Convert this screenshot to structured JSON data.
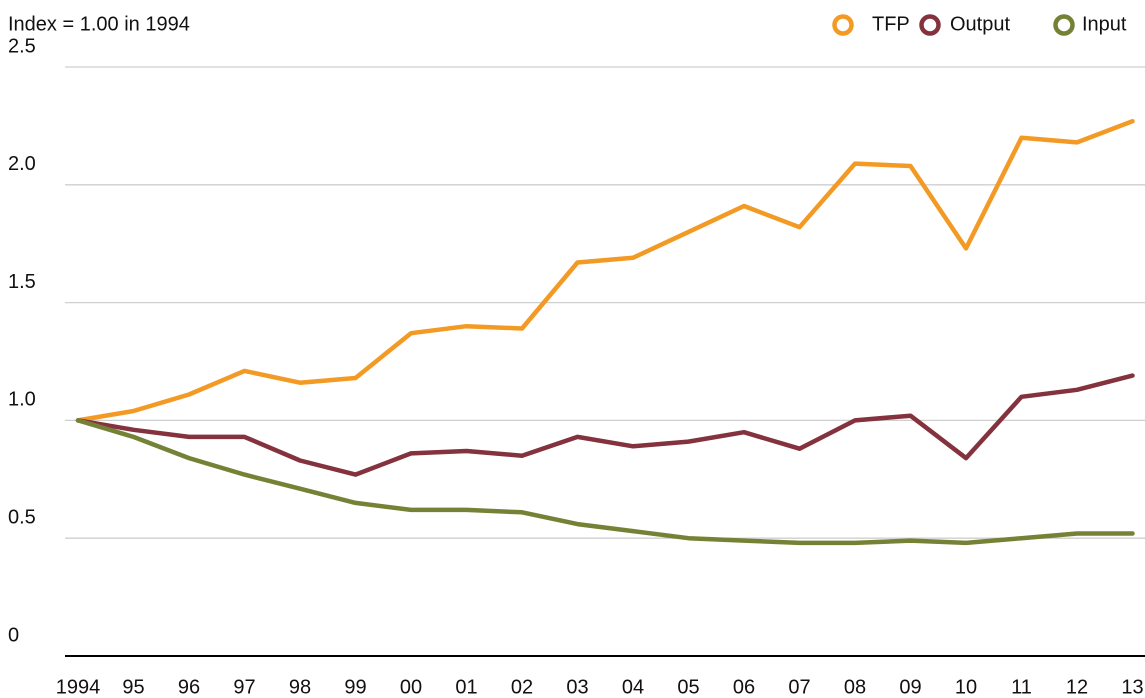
{
  "chart_data": {
    "type": "line",
    "y_label": "Index = 1.00 in 1994",
    "categories": [
      "1994",
      "95",
      "96",
      "97",
      "98",
      "99",
      "00",
      "01",
      "02",
      "03",
      "04",
      "05",
      "06",
      "07",
      "08",
      "09",
      "10",
      "11",
      "12",
      "13"
    ],
    "series": [
      {
        "name": "TFP",
        "color": "#f39a25",
        "values": [
          1.0,
          1.04,
          1.11,
          1.21,
          1.16,
          1.18,
          1.37,
          1.4,
          1.39,
          1.67,
          1.69,
          1.8,
          1.91,
          1.82,
          2.09,
          2.08,
          1.73,
          2.2,
          2.18,
          2.27
        ]
      },
      {
        "name": "Output",
        "color": "#84323d",
        "values": [
          1.0,
          0.96,
          0.93,
          0.93,
          0.83,
          0.77,
          0.86,
          0.87,
          0.85,
          0.93,
          0.89,
          0.91,
          0.95,
          0.88,
          1.0,
          1.02,
          0.84,
          1.1,
          1.13,
          1.19
        ]
      },
      {
        "name": "Input",
        "color": "#758236",
        "values": [
          1.0,
          0.93,
          0.84,
          0.77,
          0.71,
          0.65,
          0.62,
          0.62,
          0.61,
          0.56,
          0.53,
          0.5,
          0.49,
          0.48,
          0.48,
          0.49,
          0.48,
          0.5,
          0.52,
          0.52
        ]
      }
    ],
    "ylim": [
      0,
      2.5
    ],
    "yticks": [
      0,
      0.5,
      {
        "value": 1,
        "label": "1.0"
      },
      1.5,
      {
        "value": 2,
        "label": "2.0"
      },
      2.5
    ],
    "grid": true,
    "legend": "top-right"
  }
}
